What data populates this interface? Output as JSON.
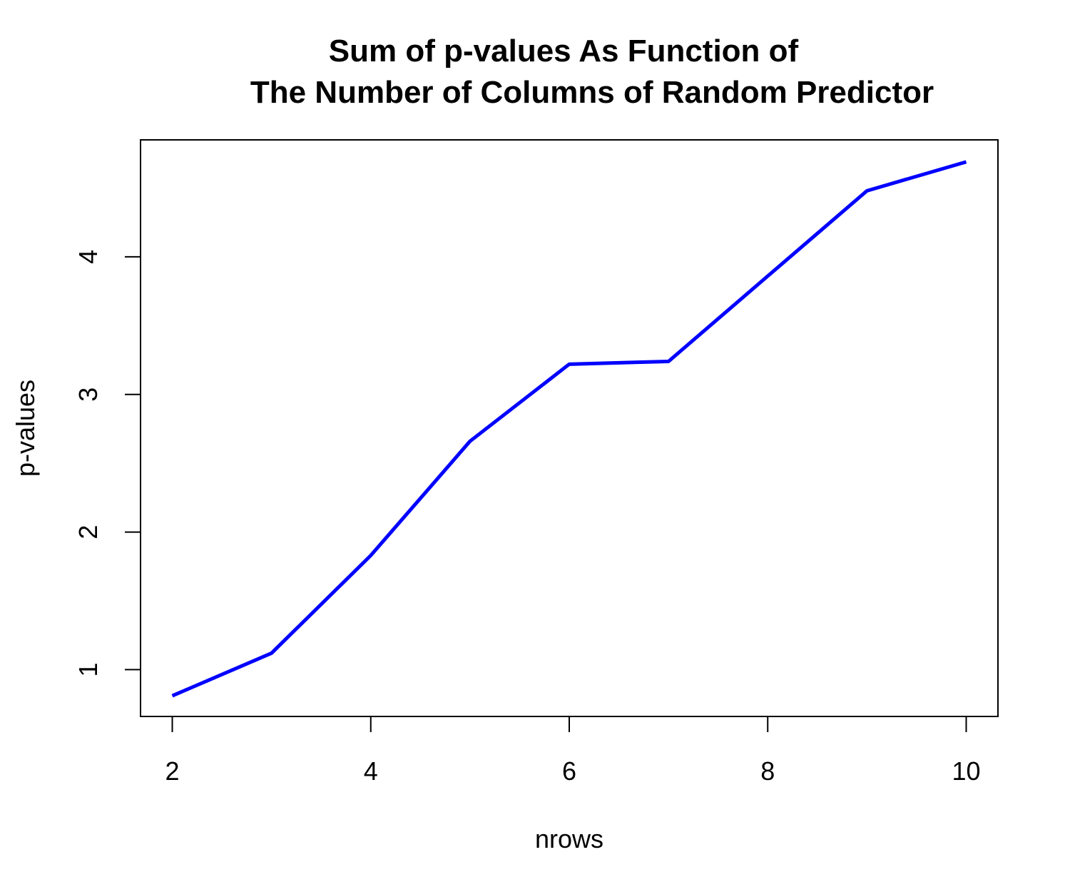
{
  "chart_data": {
    "type": "line",
    "title_lines": [
      "Sum of p-values As Function of",
      "The Number of Columns of Random Predictor"
    ],
    "xlabel": "nrows",
    "ylabel": "p-values",
    "x": [
      2,
      3,
      4,
      5,
      6,
      7,
      8,
      9,
      10
    ],
    "series": [
      {
        "values": [
          0.81,
          1.12,
          1.83,
          2.66,
          3.22,
          3.24,
          3.86,
          4.48,
          4.69
        ],
        "color": "#0000ff"
      }
    ],
    "xlim": [
      1.68,
      10.32
    ],
    "ylim": [
      0.66,
      4.85
    ],
    "x_ticks": [
      2,
      4,
      6,
      8,
      10
    ],
    "y_ticks": [
      1,
      2,
      3,
      4
    ],
    "grid": false,
    "legend": "none"
  }
}
